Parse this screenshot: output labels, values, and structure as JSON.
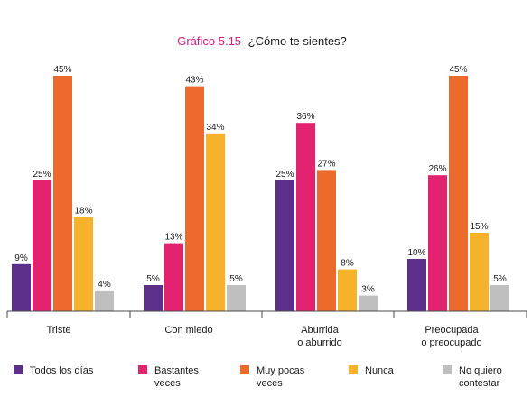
{
  "chart_data": {
    "type": "bar",
    "title_prefix": "Gráfico 5.15",
    "title": "¿Cómo te sientes?",
    "categories": [
      [
        "Triste"
      ],
      [
        "Con miedo"
      ],
      [
        "Aburrida",
        "o aburrido"
      ],
      [
        "Preocupada",
        "o preocupado"
      ]
    ],
    "series": [
      {
        "name": [
          "Todos los días"
        ],
        "color": "#5b2f8a",
        "values": [
          9,
          5,
          25,
          10
        ]
      },
      {
        "name": [
          "Bastantes",
          "veces"
        ],
        "color": "#e3236f",
        "values": [
          25,
          13,
          36,
          26
        ]
      },
      {
        "name": [
          "Muy pocas",
          "veces"
        ],
        "color": "#ec6a2c",
        "values": [
          45,
          43,
          27,
          45
        ]
      },
      {
        "name": [
          "Nunca"
        ],
        "color": "#f5b22a",
        "values": [
          18,
          34,
          8,
          15
        ]
      },
      {
        "name": [
          "No quiero",
          "contestar"
        ],
        "color": "#c0bfbf",
        "values": [
          4,
          5,
          3,
          5
        ]
      }
    ],
    "value_suffix": "%",
    "ylim": [
      0,
      50
    ],
    "grid": false,
    "legend_position": "bottom"
  }
}
